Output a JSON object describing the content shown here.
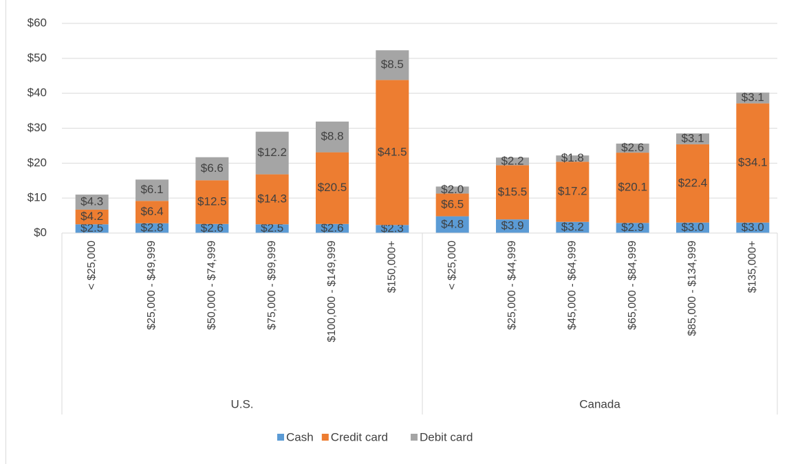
{
  "chart_data": {
    "type": "stacked_bar",
    "groups": [
      {
        "name": "U.S.",
        "categories": [
          "< $25,000",
          "$25,000 - $49,999",
          "$50,000 - $74,999",
          "$75,000 - $99,999",
          "$100,000 - $149,999",
          "$150,000+"
        ]
      },
      {
        "name": "Canada",
        "categories": [
          "< $25,000",
          "$25,000 - $44,999",
          "$45,000 - $64,999",
          "$65,000 - $84,999",
          "$85,000 - $134,999",
          "$135,000+"
        ]
      }
    ],
    "series": [
      {
        "name": "Cash",
        "color": "#5b9bd5",
        "values": [
          2.5,
          2.8,
          2.6,
          2.5,
          2.6,
          2.3,
          4.8,
          3.9,
          3.2,
          2.9,
          3.0,
          3.0
        ],
        "value_labels": [
          "$2.5",
          "$2.8",
          "$2.6",
          "$2.5",
          "$2.6",
          "$2.3",
          "$4.8",
          "$3.9",
          "$3.2",
          "$2.9",
          "$3.0",
          "$3.0"
        ]
      },
      {
        "name": "Credit card",
        "color": "#ed7d31",
        "values": [
          4.2,
          6.4,
          12.5,
          14.3,
          20.5,
          41.5,
          6.5,
          15.5,
          17.2,
          20.1,
          22.4,
          34.1
        ],
        "value_labels": [
          "$4.2",
          "$6.4",
          "$12.5",
          "$14.3",
          "$20.5",
          "$41.5",
          "$6.5",
          "$15.5",
          "$17.2",
          "$20.1",
          "$22.4",
          "$34.1"
        ]
      },
      {
        "name": "Debit card",
        "color": "#a5a5a5",
        "values": [
          4.3,
          6.1,
          6.6,
          12.2,
          8.8,
          8.5,
          2.0,
          2.2,
          1.8,
          2.6,
          3.1,
          3.1
        ],
        "value_labels": [
          "$4.3",
          "$6.1",
          "$6.6",
          "$12.2",
          "$8.8",
          "$8.5",
          "$2.0",
          "$2.2",
          "$1.8",
          "$2.6",
          "$3.1",
          "$3.1"
        ]
      }
    ],
    "ylim": [
      0,
      60
    ],
    "yticks": [
      {
        "value": 0,
        "label": "$0"
      },
      {
        "value": 10,
        "label": "$10"
      },
      {
        "value": 20,
        "label": "$20"
      },
      {
        "value": 30,
        "label": "$30"
      },
      {
        "value": 40,
        "label": "$40"
      },
      {
        "value": 50,
        "label": "$50"
      },
      {
        "value": 60,
        "label": "$60"
      }
    ],
    "grid": true,
    "legend": "bottom"
  }
}
